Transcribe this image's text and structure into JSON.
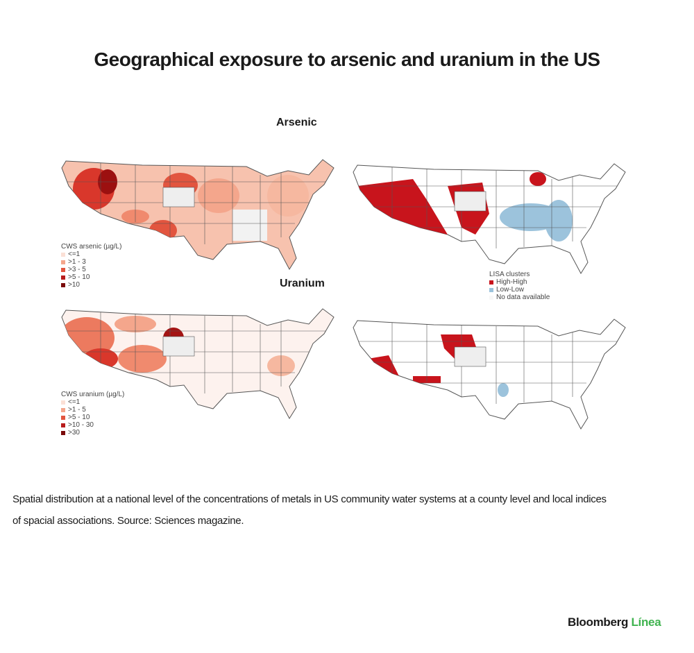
{
  "title": "Geographical exposure to arsenic and uranium in the US",
  "maps": [
    {
      "label": "Arsenic",
      "legend": {
        "title": "CWS arsenic (µg/L)",
        "items": [
          "<=1",
          ">1 - 3",
          ">3 - 5",
          ">5 - 10",
          ">10"
        ]
      }
    },
    {
      "label": "Uranium",
      "legend": {
        "title": "CWS uranium (µg/L)",
        "items": [
          "<=1",
          ">1 - 5",
          ">5 - 10",
          ">10 - 30",
          ">30"
        ]
      }
    }
  ],
  "lisa_legend": {
    "title": "LISA clusters",
    "items": [
      "High-High",
      "Low-Low",
      "No data available"
    ]
  },
  "caption": "Spatial distribution at a national level of the concentrations of metals in US community water systems at a county level and local indices of spacial associations. Source: Sciences magazine.",
  "brand": {
    "name": "Bloomberg",
    "suffix": "Línea"
  }
}
